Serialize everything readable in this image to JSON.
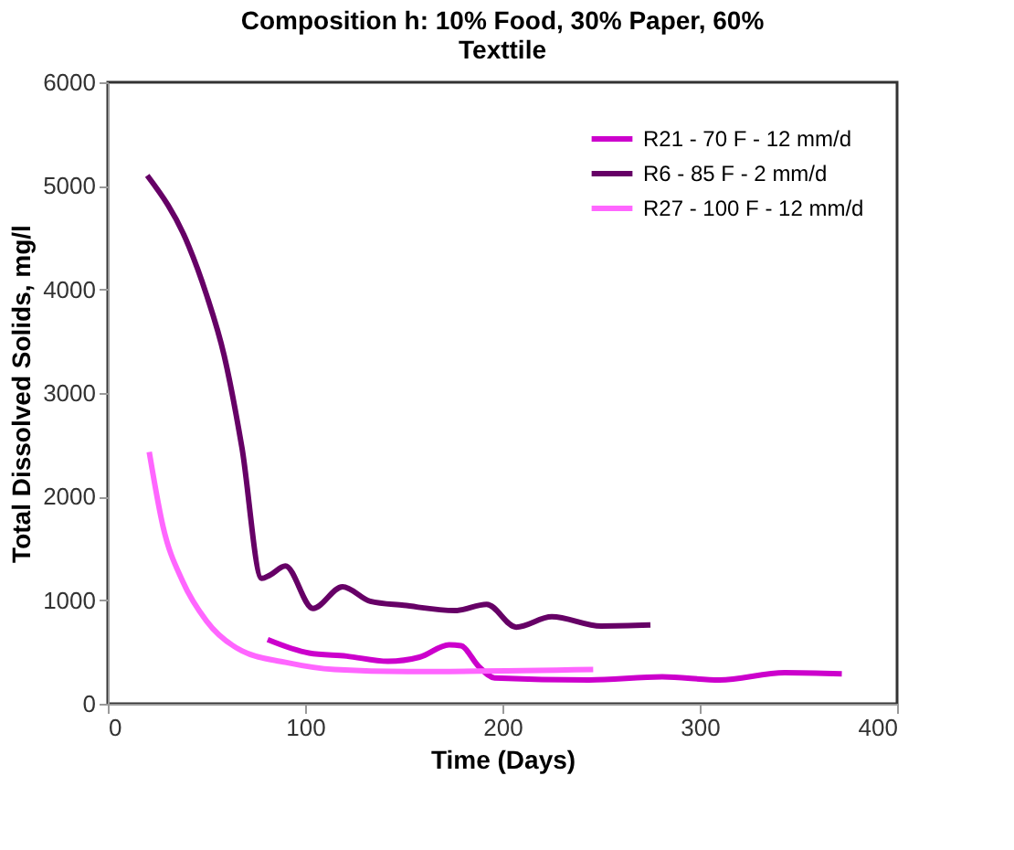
{
  "chart_data": {
    "type": "line",
    "title": "Composition h: 10% Food, 30% Paper, 60% Texttile",
    "xlabel": "Time (Days)",
    "ylabel": "Total Dissolved Solids, mg/l",
    "xlim": [
      0,
      400
    ],
    "xticks": [
      0,
      100,
      200,
      300,
      400
    ],
    "ylim": [
      0,
      6000
    ],
    "yticks": [
      0,
      1000,
      2000,
      3000,
      4000,
      5000,
      6000
    ],
    "grid": false,
    "legend": "top right",
    "marker": "none",
    "line_style": "solid",
    "series": [
      {
        "name": "R21 - 70 F - 12 mm/d",
        "color": "#cc00cc",
        "x": [
          81,
          102,
          121,
          142,
          158,
          173,
          179,
          188,
          196,
          244,
          281,
          310,
          343,
          372
        ],
        "values": [
          620,
          490,
          460,
          410,
          450,
          570,
          560,
          360,
          250,
          230,
          260,
          230,
          300,
          290
        ]
      },
      {
        "name": "R6 - 85 F - 2 mm/d",
        "color": "#660066",
        "x": [
          20,
          41,
          50,
          59,
          68,
          78,
          82,
          90,
          104,
          119,
          133,
          150,
          176,
          192,
          207,
          225,
          250,
          275
        ],
        "values": [
          5100,
          4420,
          3950,
          3360,
          2470,
          1210,
          1240,
          1330,
          920,
          1130,
          990,
          950,
          900,
          960,
          740,
          840,
          750,
          760
        ]
      },
      {
        "name": "R27 - 100 F - 12 mm/d",
        "color": "#ff66ff",
        "x": [
          21,
          28,
          38,
          50,
          68,
          90,
          115,
          152,
          246
        ],
        "values": [
          2430,
          1710,
          1180,
          800,
          510,
          400,
          330,
          310,
          330
        ]
      }
    ]
  }
}
